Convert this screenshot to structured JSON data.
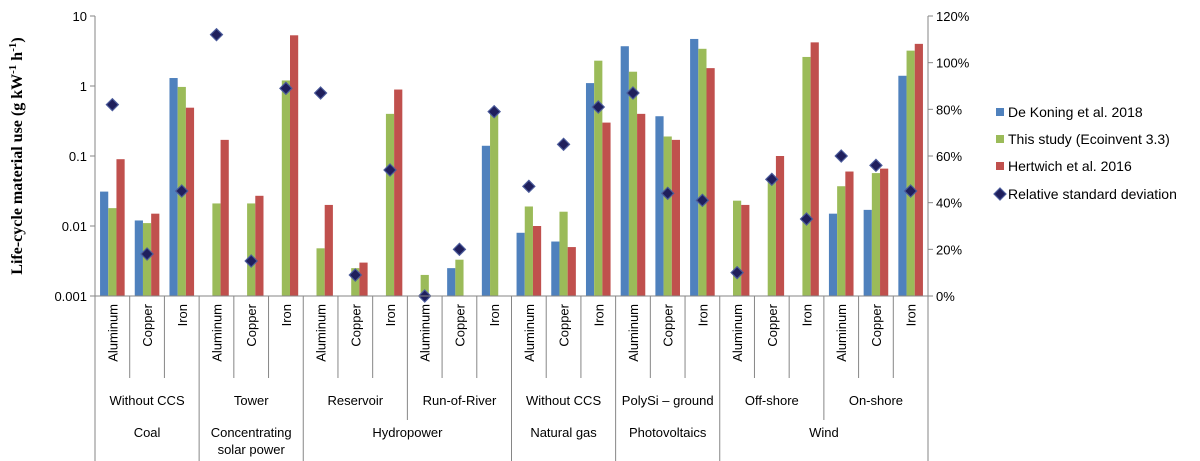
{
  "chart_data": {
    "type": "bar",
    "ylabel_parts": [
      "Life-cycle material use (g kW",
      "-1",
      " h",
      "-1",
      ")"
    ],
    "yscale": "log",
    "ylim": [
      0.001,
      10
    ],
    "y_ticks": [
      "10",
      "1",
      "0.1",
      "0.01",
      "0.001"
    ],
    "y2lim": [
      0,
      120
    ],
    "y2_ticks": [
      "120%",
      "100%",
      "80%",
      "60%",
      "40%",
      "20%",
      "0%"
    ],
    "grid": false,
    "legend_position": "right",
    "colors": {
      "de_koning": "#4F81BD",
      "this_study": "#9BBB59",
      "hertwich": "#C0504D",
      "rsd": "#1F1F5C"
    },
    "categories": [
      "Aluminum",
      "Copper",
      "Iron",
      "Aluminum",
      "Copper",
      "Iron",
      "Aluminum",
      "Copper",
      "Iron",
      "Aluminum",
      "Copper",
      "Iron",
      "Aluminum",
      "Copper",
      "Iron",
      "Aluminum",
      "Copper",
      "Iron",
      "Aluminum",
      "Copper",
      "Iron",
      "Aluminum",
      "Copper",
      "Iron"
    ],
    "subgroups": [
      {
        "label": "Without CCS",
        "span": 3
      },
      {
        "label": "Tower",
        "span": 3
      },
      {
        "label": "Reservoir",
        "span": 3
      },
      {
        "label": "Run-of-River",
        "span": 3
      },
      {
        "label": "Without CCS",
        "span": 3
      },
      {
        "label": "PolySi – ground",
        "span": 3
      },
      {
        "label": "Off-shore",
        "span": 3
      },
      {
        "label": "On-shore",
        "span": 3
      }
    ],
    "groups": [
      {
        "label": [
          "Coal"
        ],
        "span": 3
      },
      {
        "label": [
          "Concentrating",
          "solar power"
        ],
        "span": 3
      },
      {
        "label": [
          "Hydropower"
        ],
        "span": 6
      },
      {
        "label": [
          "Natural gas"
        ],
        "span": 3
      },
      {
        "label": [
          "Photovoltaics"
        ],
        "span": 3
      },
      {
        "label": [
          "Wind"
        ],
        "span": 6
      }
    ],
    "series": [
      {
        "name": "De Koning et al. 2018",
        "color_key": "de_koning",
        "values": [
          0.031,
          0.012,
          1.3,
          null,
          null,
          null,
          null,
          null,
          null,
          null,
          0.0025,
          0.14,
          0.008,
          0.006,
          1.1,
          3.7,
          0.37,
          4.7,
          null,
          null,
          null,
          0.015,
          0.017,
          1.4
        ]
      },
      {
        "name": "This study (Ecoinvent 3.3)",
        "color_key": "this_study",
        "values": [
          0.018,
          0.011,
          0.97,
          0.021,
          0.021,
          1.2,
          0.0048,
          0.0025,
          0.4,
          0.002,
          0.0033,
          0.4,
          0.019,
          0.016,
          2.3,
          1.6,
          0.19,
          3.4,
          0.023,
          0.045,
          2.6,
          0.037,
          0.057,
          3.2
        ]
      },
      {
        "name": "Hertwich et al. 2016",
        "color_key": "hertwich",
        "values": [
          0.09,
          0.015,
          0.49,
          0.17,
          0.027,
          5.3,
          0.02,
          0.003,
          0.89,
          null,
          null,
          null,
          0.01,
          0.005,
          0.3,
          0.4,
          0.17,
          1.8,
          0.02,
          0.1,
          4.2,
          0.06,
          0.066,
          4.0
        ]
      }
    ],
    "rsd": {
      "name": "Relative standard deviation",
      "color_key": "rsd",
      "axis": "secondary",
      "values": [
        82,
        18,
        45,
        112,
        15,
        89,
        87,
        9,
        54,
        0,
        20,
        79,
        47,
        65,
        81,
        87,
        44,
        41,
        10,
        50,
        33,
        60,
        56,
        45
      ]
    }
  }
}
